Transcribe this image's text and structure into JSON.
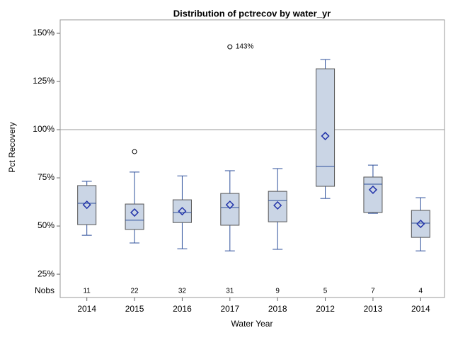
{
  "chart_data": {
    "type": "box",
    "title": "Distribution of pctrecov by water_yr",
    "x_label": "Water Year",
    "y_label": "Pct Recovery",
    "ylim": [
      12.9,
      157
    ],
    "yticks": [
      {
        "value": 25,
        "label": "25%"
      },
      {
        "value": 50,
        "label": "50%"
      },
      {
        "value": 75,
        "label": "75%"
      },
      {
        "value": 100,
        "label": "100%"
      },
      {
        "value": 125,
        "label": "125%"
      },
      {
        "value": 150,
        "label": "150%"
      }
    ],
    "refline": 100,
    "nobs_label": "Nobs",
    "categories": [
      "2014",
      "2015",
      "2016",
      "2017",
      "2018",
      "2012",
      "2013",
      "2014"
    ],
    "nobs": [
      11,
      22,
      32,
      31,
      9,
      5,
      7,
      4
    ],
    "box_color": "#cad5e5",
    "line_color": "#2d4f9b",
    "boxes": [
      {
        "min": 45.2,
        "q1": 50.7,
        "median": 61.8,
        "q3": 71,
        "max": 73.2,
        "mean": 61
      },
      {
        "min": 41.2,
        "q1": 48.2,
        "median": 53,
        "q3": 61.4,
        "max": 78,
        "mean": 57,
        "outliers": [
          88.6
        ]
      },
      {
        "min": 38.2,
        "q1": 51.8,
        "median": 57,
        "q3": 63.6,
        "max": 76,
        "mean": 57.7
      },
      {
        "min": 37.1,
        "q1": 50.4,
        "median": 59.6,
        "q3": 66.9,
        "max": 78.7,
        "mean": 61,
        "outliers": [
          143
        ],
        "outlier_labels": [
          "143%"
        ]
      },
      {
        "min": 37.9,
        "q1": 52.2,
        "median": 63.2,
        "q3": 68,
        "max": 79.8,
        "mean": 60.7
      },
      {
        "min": 64.3,
        "q1": 70.6,
        "median": 80.9,
        "q3": 131.6,
        "max": 136.4,
        "mean": 96.7
      },
      {
        "min": 56.6,
        "q1": 57,
        "median": 71.7,
        "q3": 75.4,
        "max": 81.6,
        "mean": 68.8
      },
      {
        "min": 37.1,
        "q1": 44.1,
        "median": 51.5,
        "q3": 58.1,
        "max": 64.7,
        "mean": 51.1
      }
    ]
  }
}
